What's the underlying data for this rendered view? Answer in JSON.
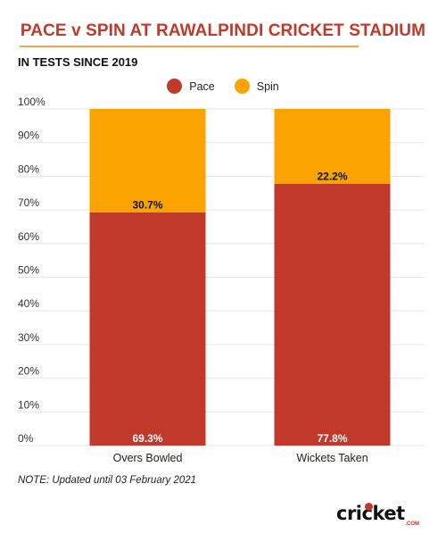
{
  "title": "PACE v SPIN AT RAWALPINDI CRICKET STADIUM",
  "subtitle": "IN TESTS SINCE 2019",
  "note": "NOTE: Updated until 03 February 2021",
  "logo": {
    "text": "cricket",
    "suffix": ".COM"
  },
  "colors": {
    "pace": "#c1392b",
    "spin": "#fba300",
    "title": "#c1392b",
    "grid": "#e6e6e6"
  },
  "chart_data": {
    "type": "bar",
    "stacked": true,
    "percent_stacked": true,
    "categories": [
      "Overs Bowled",
      "Wickets Taken"
    ],
    "series": [
      {
        "name": "Pace",
        "values": [
          69.3,
          77.8
        ],
        "labels": [
          "69.3%",
          "77.8%"
        ]
      },
      {
        "name": "Spin",
        "values": [
          30.7,
          22.2
        ],
        "labels": [
          "30.7%",
          "22.2%"
        ]
      }
    ],
    "yticks": [
      "0%",
      "10%",
      "20%",
      "30%",
      "40%",
      "50%",
      "60%",
      "70%",
      "80%",
      "90%",
      "100%"
    ],
    "ylim": [
      0,
      100
    ],
    "grid": true,
    "legend": "top-center"
  }
}
